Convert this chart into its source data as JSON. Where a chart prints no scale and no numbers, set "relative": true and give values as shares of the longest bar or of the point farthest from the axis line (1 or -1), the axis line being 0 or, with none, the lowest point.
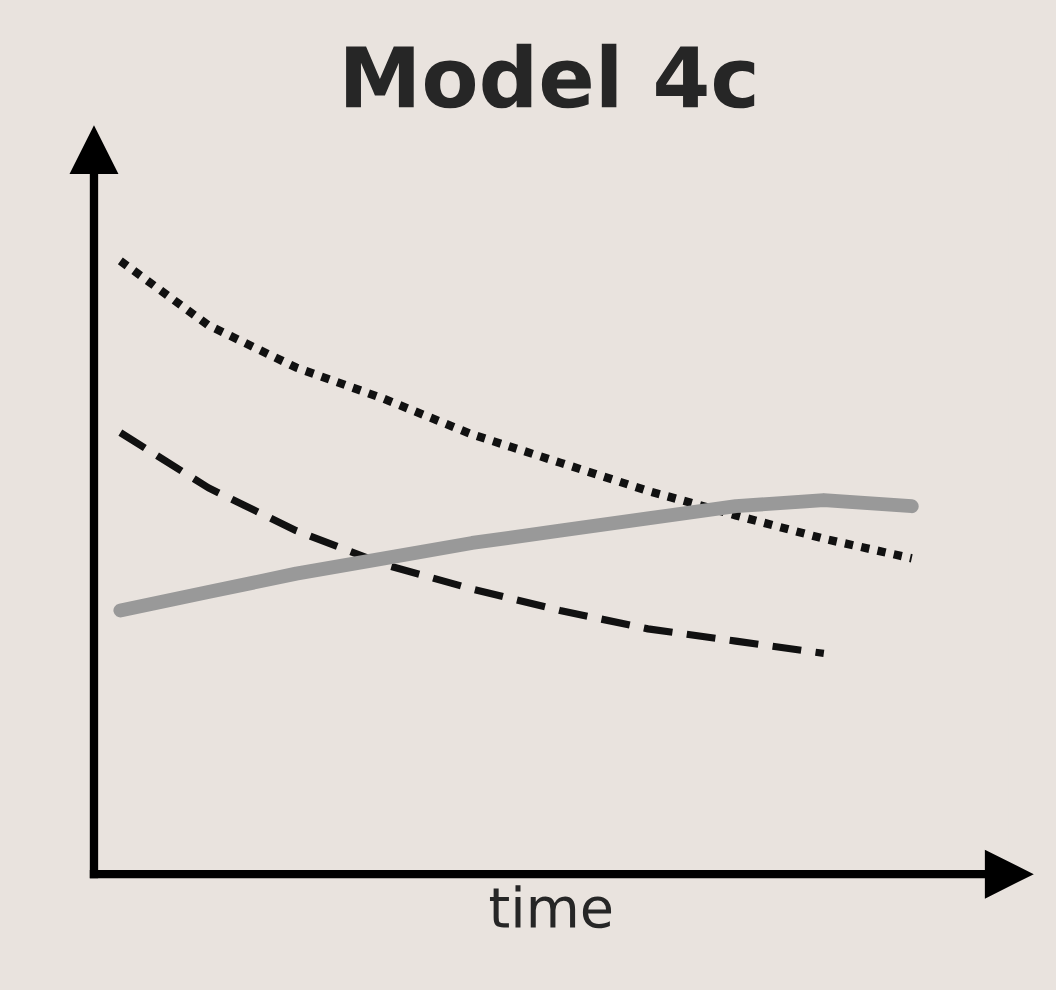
{
  "chart_data": {
    "type": "line",
    "title": "Model 4c",
    "xlabel": "time",
    "relative": true,
    "legend": false,
    "tick_labels": false,
    "categories": [
      null,
      null,
      null,
      null,
      null,
      null,
      null,
      null,
      null,
      null
    ],
    "series": [
      {
        "color": "#111111",
        "line_style": "dotted",
        "values": [
          1.0,
          0.895,
          0.826,
          0.775,
          0.717,
          0.671,
          0.625,
          0.585,
          0.547,
          0.515
        ]
      },
      {
        "color": "#111111",
        "line_style": "dashed",
        "values": [
          0.72,
          0.63,
          0.56,
          0.505,
          0.465,
          0.43,
          0.4,
          0.38,
          0.36,
          null
        ]
      },
      {
        "color": "#999999",
        "line_style": "solid",
        "values": [
          0.43,
          0.46,
          0.49,
          0.515,
          0.54,
          0.56,
          0.58,
          0.6,
          0.61,
          0.6
        ]
      }
    ]
  }
}
